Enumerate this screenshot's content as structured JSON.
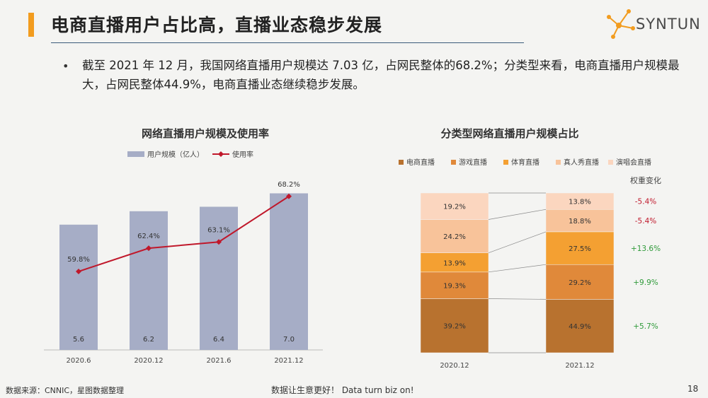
{
  "header": {
    "title": "电商直播用户占比高，直播业态稳步发展",
    "logo_text": "SYNTUN"
  },
  "bullet": {
    "text": "截至 2021 年 12 月，我国网络直播用户规模达 7.03 亿，占网民整体的68.2%；分类型来看，电商直播用户规模最大，占网民整体44.9%，电商直播业态继续稳步发展。"
  },
  "chart_data": [
    {
      "type": "bar+line",
      "title": "网络直播用户规模及使用率",
      "categories": [
        "2020.6",
        "2020.12",
        "2021.6",
        "2021.12"
      ],
      "series": [
        {
          "name": "用户规模（亿人）",
          "type": "bar",
          "color": "#a6adc6",
          "values": [
            5.6,
            6.2,
            6.4,
            7.0
          ],
          "labels": [
            "5.6",
            "6.2",
            "6.4",
            "7.0"
          ]
        },
        {
          "name": "使用率",
          "type": "line",
          "color": "#c0182b",
          "values": [
            59.8,
            62.4,
            63.1,
            68.2
          ],
          "labels": [
            "59.8%",
            "62.4%",
            "63.1%",
            "68.2%"
          ]
        }
      ],
      "legend_position": "top"
    },
    {
      "type": "stacked_bar",
      "title": "分类型网络直播用户规模占比",
      "categories": [
        "2020.12",
        "2021.12"
      ],
      "series": [
        {
          "name": "电商直播",
          "color": "#b8722f",
          "values": [
            39.2,
            44.9
          ],
          "labels": [
            "39.2%",
            "44.9%"
          ]
        },
        {
          "name": "游戏直播",
          "color": "#e0893a",
          "values": [
            19.3,
            29.2
          ],
          "labels": [
            "19.3%",
            "29.2%"
          ]
        },
        {
          "name": "体育直播",
          "color": "#f4a032",
          "values": [
            13.9,
            27.5
          ],
          "labels": [
            "13.9%",
            "27.5%"
          ]
        },
        {
          "name": "真人秀直播",
          "color": "#f8c39a",
          "values": [
            24.2,
            18.8
          ],
          "labels": [
            "24.2%",
            "18.8%"
          ]
        },
        {
          "name": "演唱会直播",
          "color": "#fbd6bf",
          "values": [
            19.2,
            13.8
          ],
          "labels": [
            "19.2%",
            "13.8%"
          ]
        }
      ],
      "changes_title": "权重变化",
      "changes": [
        {
          "label": "-5.4%",
          "color": "#c0182b"
        },
        {
          "label": "-5.4%",
          "color": "#c0182b"
        },
        {
          "label": "+13.6%",
          "color": "#2f9a3a"
        },
        {
          "label": "+9.9%",
          "color": "#2f9a3a"
        },
        {
          "label": "+5.7%",
          "color": "#2f9a3a"
        }
      ],
      "legend_position": "top"
    }
  ],
  "footer": {
    "source": "数据来源：CNNIC，星图数据整理",
    "slogan": "数据让生意更好！ Data turn biz on!",
    "page": "18"
  }
}
